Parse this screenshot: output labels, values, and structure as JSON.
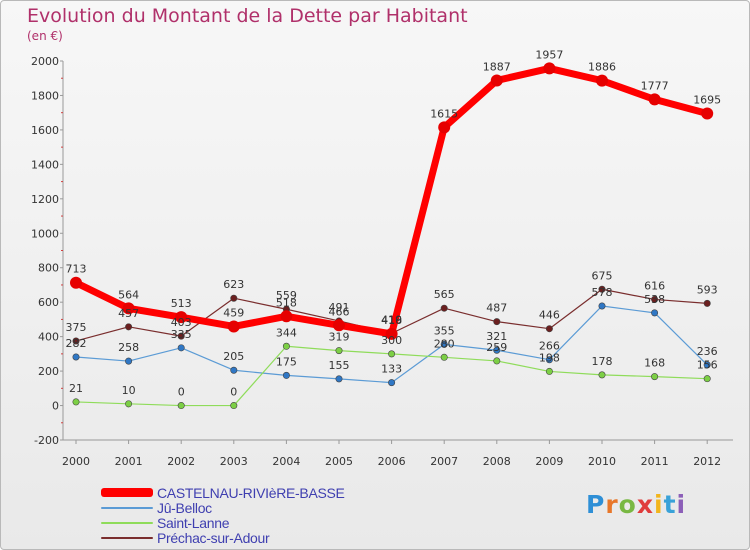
{
  "header": {
    "title": "Evolution du Montant de la Dette par Habitant",
    "subtitle": "(en €)"
  },
  "brand": {
    "letters": [
      "P",
      "r",
      "o",
      "x",
      "i",
      "t",
      "i"
    ],
    "colors": [
      "#2e8fd6",
      "#e8772a",
      "#79b843",
      "#e03c3c",
      "#f2b51c",
      "#3aa2d8",
      "#8c5fb8"
    ]
  },
  "chart_data": {
    "type": "line",
    "title": "Evolution du Montant de la Dette par Habitant",
    "ylabel": "(en €)",
    "xlabel": "",
    "x": [
      "2000",
      "2001",
      "2002",
      "2003",
      "2004",
      "2005",
      "2006",
      "2007",
      "2008",
      "2009",
      "2010",
      "2011",
      "2012"
    ],
    "ylim": [
      -200,
      2000
    ],
    "yticks": [
      "-200",
      "0",
      "200",
      "400",
      "600",
      "800",
      "1000",
      "1200",
      "1400",
      "1600",
      "1800",
      "2000"
    ],
    "grid": false,
    "legend_position": "bottom-left",
    "series": [
      {
        "name": "CASTELNAU-RIVIèRE-BASSE",
        "color": "#ff0000",
        "marker": "#e60000",
        "width": 7,
        "emphasis": true,
        "values": [
          713,
          564,
          513,
          459,
          518,
          466,
          416,
          1615,
          1887,
          1957,
          1886,
          1777,
          1695
        ],
        "labels": [
          "713",
          "564",
          "513",
          "459",
          "518",
          "466",
          "416",
          "1615",
          "1887",
          "1957",
          "1886",
          "1777",
          "1695"
        ]
      },
      {
        "name": "Jû-Belloc",
        "color": "#5b9bd5",
        "marker": "#2f77c5",
        "width": 1.2,
        "emphasis": false,
        "values": [
          282,
          258,
          335,
          205,
          175,
          155,
          133,
          355,
          321,
          266,
          578,
          538,
          236
        ],
        "labels": [
          "282",
          "258",
          "335",
          "205",
          "175",
          "155",
          "133",
          "355",
          "321",
          "266",
          "578",
          "538",
          "236"
        ]
      },
      {
        "name": "Saint-Lanne",
        "color": "#8fdc5a",
        "marker": "#7ccf45",
        "width": 1.2,
        "emphasis": false,
        "values": [
          21,
          10,
          0,
          0,
          344,
          319,
          300,
          280,
          259,
          198,
          178,
          168,
          156
        ],
        "labels": [
          "21",
          "10",
          "0",
          "0",
          "344",
          "319",
          "300",
          "280",
          "259",
          "198",
          "178",
          "168",
          "156"
        ]
      },
      {
        "name": "Préchac-sur-Adour",
        "color": "#7a2e2e",
        "marker": "#6b1f1f",
        "width": 1.2,
        "emphasis": false,
        "values": [
          375,
          457,
          403,
          623,
          559,
          491,
          419,
          565,
          487,
          446,
          675,
          616,
          593
        ],
        "labels": [
          "375",
          "457",
          "403",
          "623",
          "559",
          "491",
          "419",
          "565",
          "487",
          "446",
          "675",
          "616",
          "593"
        ]
      }
    ]
  }
}
